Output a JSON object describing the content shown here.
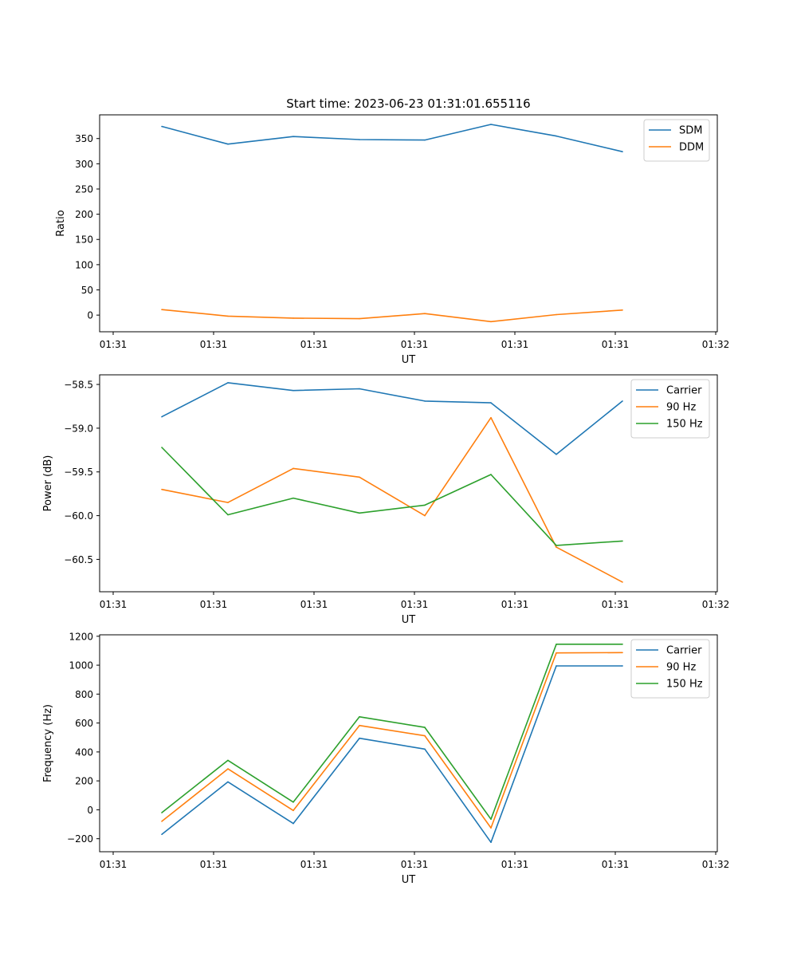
{
  "title": "Start time: 2023-06-23 01:31:01.655116",
  "colors": {
    "c0": "#1f77b4",
    "c1": "#ff7f0e",
    "c2": "#2ca02c"
  },
  "chart_data": [
    {
      "type": "line",
      "xlabel": "UT",
      "ylabel": "Ratio",
      "x_tick_labels": [
        "01:31",
        "01:31",
        "01:31",
        "01:31",
        "01:31",
        "01:31",
        "01:32"
      ],
      "y_ticks": [
        0,
        50,
        100,
        150,
        200,
        250,
        300,
        350
      ],
      "y_tick_labels": [
        "0",
        "50",
        "100",
        "150",
        "200",
        "250",
        "300",
        "350"
      ],
      "ylim": [
        -33,
        397
      ],
      "legend": "top-right",
      "series": [
        {
          "name": "SDM",
          "color": "#1f77b4",
          "values": [
            374,
            339,
            354,
            348,
            347,
            378,
            355,
            324
          ]
        },
        {
          "name": "DDM",
          "color": "#ff7f0e",
          "values": [
            11,
            -2,
            -6,
            -7,
            3,
            -13,
            1,
            10
          ]
        }
      ]
    },
    {
      "type": "line",
      "xlabel": "UT",
      "ylabel": "Power (dB)",
      "x_tick_labels": [
        "01:31",
        "01:31",
        "01:31",
        "01:31",
        "01:31",
        "01:31",
        "01:32"
      ],
      "y_ticks": [
        -58.5,
        -59.0,
        -59.5,
        -60.0,
        -60.5
      ],
      "y_tick_labels": [
        "−58.5",
        "−59.0",
        "−59.5",
        "−60.0",
        "−60.5"
      ],
      "ylim": [
        -60.87,
        -58.39
      ],
      "legend": "top-right",
      "series": [
        {
          "name": "Carrier",
          "color": "#1f77b4",
          "values": [
            -58.87,
            -58.48,
            -58.57,
            -58.55,
            -58.69,
            -58.71,
            -59.3,
            -58.69
          ]
        },
        {
          "name": "90 Hz",
          "color": "#ff7f0e",
          "values": [
            -59.7,
            -59.85,
            -59.46,
            -59.56,
            -60.0,
            -58.88,
            -60.36,
            -60.76
          ]
        },
        {
          "name": "150 Hz",
          "color": "#2ca02c",
          "values": [
            -59.22,
            -59.99,
            -59.8,
            -59.97,
            -59.88,
            -59.53,
            -60.34,
            -60.29
          ]
        }
      ]
    },
    {
      "type": "line",
      "xlabel": "UT",
      "ylabel": "Frequency (Hz)",
      "x_tick_labels": [
        "01:31",
        "01:31",
        "01:31",
        "01:31",
        "01:31",
        "01:31",
        "01:32"
      ],
      "y_ticks": [
        -200,
        0,
        200,
        400,
        600,
        800,
        1000,
        1200
      ],
      "y_tick_labels": [
        "−200",
        "0",
        "200",
        "400",
        "600",
        "800",
        "1000",
        "1200"
      ],
      "ylim": [
        -290,
        1210
      ],
      "legend": "top-right",
      "series": [
        {
          "name": "Carrier",
          "color": "#1f77b4",
          "values": [
            -170,
            193,
            -95,
            495,
            420,
            -225,
            995,
            995
          ]
        },
        {
          "name": "90 Hz",
          "color": "#ff7f0e",
          "values": [
            -80,
            283,
            -5,
            583,
            512,
            -125,
            1085,
            1087
          ]
        },
        {
          "name": "150 Hz",
          "color": "#2ca02c",
          "values": [
            -20,
            342,
            53,
            643,
            570,
            -65,
            1145,
            1145
          ]
        }
      ]
    }
  ]
}
